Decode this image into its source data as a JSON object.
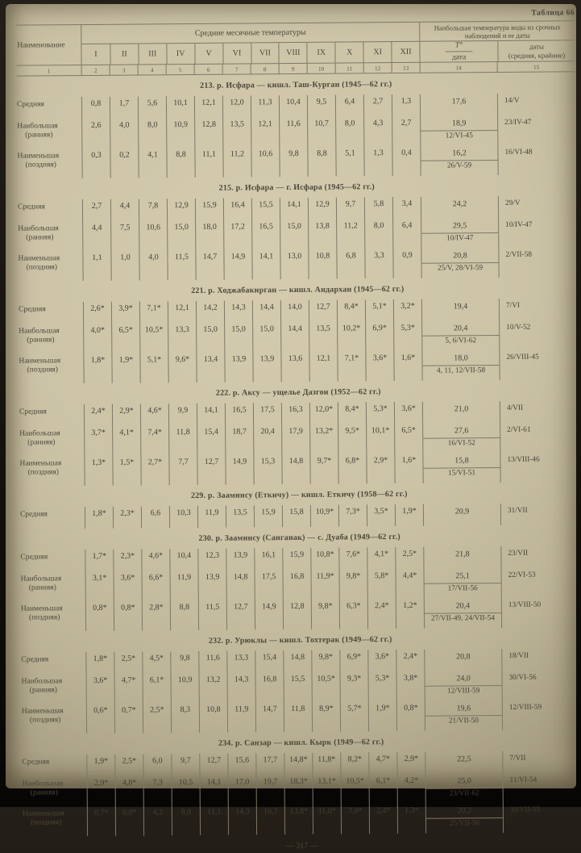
{
  "page": {
    "table_label": "Таблица 66",
    "page_number": "— 317 —"
  },
  "table": {
    "name_header": "Наименование",
    "months_header": "Средние месячные температуры",
    "max_header": "Наибольшая температура воды из срочных наблюдений и ее даты",
    "t_top": "Т°",
    "t_bottom": "дата",
    "dates_line1": "даты",
    "dates_line2": "(средняя, крайние)",
    "month_cols": [
      "I",
      "II",
      "III",
      "IV",
      "V",
      "VI",
      "VII",
      "VIII",
      "IX",
      "X",
      "XI",
      "XII"
    ],
    "col_numbers": [
      "1",
      "2",
      "3",
      "4",
      "5",
      "6",
      "7",
      "8",
      "9",
      "10",
      "11",
      "12",
      "13",
      "14",
      "15"
    ]
  },
  "sections": [
    {
      "title": "213. р. Исфара — кишл. Таш-Курган (1945—62 гг.)",
      "rows": [
        {
          "label": "Средняя",
          "sublabel": "",
          "months": [
            "0,8",
            "1,7",
            "5,6",
            "10,1",
            "12,1",
            "12,0",
            "11,3",
            "10,4",
            "9,5",
            "6,4",
            "2,7",
            "1,3"
          ],
          "t_value": "17,6",
          "t_date": "",
          "date": "14/V"
        },
        {
          "label": "Наибольшая",
          "sublabel": "(ранняя)",
          "months": [
            "2,6",
            "4,0",
            "8,0",
            "10,9",
            "12,8",
            "13,5",
            "12,1",
            "11,6",
            "10,7",
            "8,0",
            "4,3",
            "2,7"
          ],
          "t_value": "18,9",
          "t_date": "12/VI-45",
          "date": "23/IV-47"
        },
        {
          "label": "Наименьшая",
          "sublabel": "(поздняя)",
          "months": [
            "0,3",
            "0,2",
            "4,1",
            "8,8",
            "11,1",
            "11,2",
            "10,6",
            "9,8",
            "8,8",
            "5,1",
            "1,3",
            "0,4"
          ],
          "t_value": "16,2",
          "t_date": "26/V-59",
          "date": "16/VI-48"
        }
      ]
    },
    {
      "title": "215. р. Исфара — г. Исфара (1945—62 гг.)",
      "rows": [
        {
          "label": "Средняя",
          "sublabel": "",
          "months": [
            "2,7",
            "4,4",
            "7,8",
            "12,9",
            "15,9",
            "16,4",
            "15,5",
            "14,1",
            "12,9",
            "9,7",
            "5,8",
            "3,4"
          ],
          "t_value": "24,2",
          "t_date": "",
          "date": "29/V"
        },
        {
          "label": "Наибольшая",
          "sublabel": "(ранняя)",
          "months": [
            "4,4",
            "7,5",
            "10,6",
            "15,0",
            "18,0",
            "17,2",
            "16,5",
            "15,0",
            "13,8",
            "11,2",
            "8,0",
            "6,4"
          ],
          "t_value": "29,5",
          "t_date": "10/IV-47",
          "date": "10/IV-47"
        },
        {
          "label": "Наименьшая",
          "sublabel": "(поздняя)",
          "months": [
            "1,1",
            "1,0",
            "4,0",
            "11,5",
            "14,7",
            "14,9",
            "14,1",
            "13,0",
            "10,8",
            "6,8",
            "3,3",
            "0,9"
          ],
          "t_value": "20,8",
          "t_date": "25/V, 28/VI-59",
          "date": "2/VII-58"
        }
      ]
    },
    {
      "title": "221. р. Ходжабакирган — кишл. Андархан (1945—62 гг.)",
      "rows": [
        {
          "label": "Средняя",
          "sublabel": "",
          "months": [
            "2,6*",
            "3,9*",
            "7,1*",
            "12,1",
            "14,2",
            "14,3",
            "14,4",
            "14,0",
            "12,7",
            "8,4*",
            "5,1*",
            "3,2*"
          ],
          "t_value": "19,4",
          "t_date": "",
          "date": "7/VI"
        },
        {
          "label": "Наибольшая",
          "sublabel": "(ранняя)",
          "months": [
            "4,0*",
            "6,5*",
            "10,5*",
            "13,3",
            "15,0",
            "15,0",
            "15,0",
            "14,4",
            "13,5",
            "10,2*",
            "6,9*",
            "5,3*"
          ],
          "t_value": "20,4",
          "t_date": "5, 6/VI-62",
          "date": "10/V-52"
        },
        {
          "label": "Наименьшая",
          "sublabel": "(поздняя)",
          "months": [
            "1,8*",
            "1,9*",
            "5,1*",
            "9,6*",
            "13,4",
            "13,9",
            "13,9",
            "13,6",
            "12,1",
            "7,1*",
            "3,6*",
            "1,6*"
          ],
          "t_value": "18,0",
          "t_date": "4, 11, 12/VII-58",
          "date": "26/VIII-45"
        }
      ]
    },
    {
      "title": "222. р. Аксу — ущелье Дазгон (1952—62 гг.)",
      "rows": [
        {
          "label": "Средняя",
          "sublabel": "",
          "months": [
            "2,4*",
            "2,9*",
            "4,6*",
            "9,9",
            "14,1",
            "16,5",
            "17,5",
            "16,3",
            "12,0*",
            "8,4*",
            "5,3*",
            "3,6*"
          ],
          "t_value": "21,0",
          "t_date": "",
          "date": "4/VII"
        },
        {
          "label": "Наибольшая",
          "sublabel": "(ранняя)",
          "months": [
            "3,7*",
            "4,1*",
            "7,4*",
            "11,8",
            "15,4",
            "18,7",
            "20,4",
            "17,9",
            "13,2*",
            "9,5*",
            "10,1*",
            "6,5*"
          ],
          "t_value": "27,6",
          "t_date": "16/VI-52",
          "date": "2/VI-61"
        },
        {
          "label": "Наименьшая",
          "sublabel": "(поздняя)",
          "months": [
            "1,3*",
            "1,5*",
            "2,7*",
            "7,7",
            "12,7",
            "14,9",
            "15,3",
            "14,8",
            "9,7*",
            "6,8*",
            "2,9*",
            "1,6*"
          ],
          "t_value": "15,8",
          "t_date": "15/VI-51",
          "date": "13/VIII-46"
        }
      ]
    },
    {
      "title": "229. р. Зааминсу (Еткичу) — кишл. Еткичу (1958—62 гг.)",
      "rows": [
        {
          "label": "Средняя",
          "sublabel": "",
          "months": [
            "1,8*",
            "2,3*",
            "6,6",
            "10,3",
            "11,9",
            "13,5",
            "15,9",
            "15,8",
            "10,9*",
            "7,3*",
            "3,5*",
            "1,9*"
          ],
          "t_value": "20,9",
          "t_date": "",
          "date": "31/VII"
        }
      ]
    },
    {
      "title": "230. р. Зааминсу (Санганак) — с. Дуаба (1949—62 гг.)",
      "rows": [
        {
          "label": "Средняя",
          "sublabel": "",
          "months": [
            "1,7*",
            "2,3*",
            "4,6*",
            "10,4",
            "12,3",
            "13,9",
            "16,1",
            "15,9",
            "10,8*",
            "7,6*",
            "4,1*",
            "2,5*"
          ],
          "t_value": "21,8",
          "t_date": "",
          "date": "23/VII"
        },
        {
          "label": "Наибольшая",
          "sublabel": "(ранняя)",
          "months": [
            "3,1*",
            "3,6*",
            "6,6*",
            "11,9",
            "13,9",
            "14,8",
            "17,5",
            "16,8",
            "11,9*",
            "9,8*",
            "5,8*",
            "4,4*"
          ],
          "t_value": "25,1",
          "t_date": "17/VII-56",
          "date": "22/VI-53"
        },
        {
          "label": "Наименьшая",
          "sublabel": "(поздняя)",
          "months": [
            "0,8*",
            "0,8*",
            "2,8*",
            "8,8",
            "11,5",
            "12,7",
            "14,9",
            "12,8",
            "9,8*",
            "6,3*",
            "2,4*",
            "1,2*"
          ],
          "t_value": "20,4",
          "t_date": "27/VII-49, 24/VII-54",
          "date": "13/VIII-50"
        }
      ]
    },
    {
      "title": "232. р. Урюклы — кишл. Тохтерак (1949—62 гг.)",
      "rows": [
        {
          "label": "Средняя",
          "sublabel": "",
          "months": [
            "1,8*",
            "2,5*",
            "4,5*",
            "9,8",
            "11,6",
            "13,3",
            "15,4",
            "14,8",
            "9,8*",
            "6,9*",
            "3,6*",
            "2,4*"
          ],
          "t_value": "20,8",
          "t_date": "",
          "date": "18/VII"
        },
        {
          "label": "Наибольшая",
          "sublabel": "(ранняя)",
          "months": [
            "3,6*",
            "4,7*",
            "6,1*",
            "10,9",
            "13,2",
            "14,3",
            "16,8",
            "15,5",
            "10,5*",
            "9,3*",
            "5,3*",
            "3,8*"
          ],
          "t_value": "24,0",
          "t_date": "12/VIII-59",
          "date": "30/VI-56"
        },
        {
          "label": "Наименьшая",
          "sublabel": "(поздняя)",
          "months": [
            "0,6*",
            "0,7*",
            "2,5*",
            "8,3",
            "10,8",
            "11,9",
            "14,7",
            "11,8",
            "8,9*",
            "5,7*",
            "1,9*",
            "0,8*"
          ],
          "t_value": "19,6",
          "t_date": "21/VII-50",
          "date": "12/VIII-59"
        }
      ]
    },
    {
      "title": "234. р. Санзар — кишл. Кырк (1949—62 гг.)",
      "rows": [
        {
          "label": "Средняя",
          "sublabel": "",
          "months": [
            "1,9*",
            "2,5*",
            "6,0",
            "9,7",
            "12,7",
            "15,6",
            "17,7",
            "14,8*",
            "11,8*",
            "8,2*",
            "4,7*",
            "2,9*"
          ],
          "t_value": "22,5",
          "t_date": "",
          "date": "7/VII"
        },
        {
          "label": "Наибольшая",
          "sublabel": "(ранняя)",
          "months": [
            "2,9*",
            "4,8*",
            "7,3",
            "10,5",
            "14,1",
            "17,0",
            "19,7",
            "18,3*",
            "13,1*",
            "10,5*",
            "6,1*",
            "4,2*"
          ],
          "t_value": "25,0",
          "t_date": "23/VII-62",
          "date": "11/VI-54"
        },
        {
          "label": "Наименьшая",
          "sublabel": "(поздняя)",
          "months": [
            "0,7*",
            "0,8*",
            "4,2",
            "8,0",
            "11,1",
            "14,3",
            "16,7",
            "13,8*",
            "11,0*",
            "7,0*",
            "2,4*",
            "1,3*"
          ],
          "t_value": "20,2",
          "t_date": "25/VII-50",
          "date": "30/VII-55"
        }
      ]
    }
  ]
}
